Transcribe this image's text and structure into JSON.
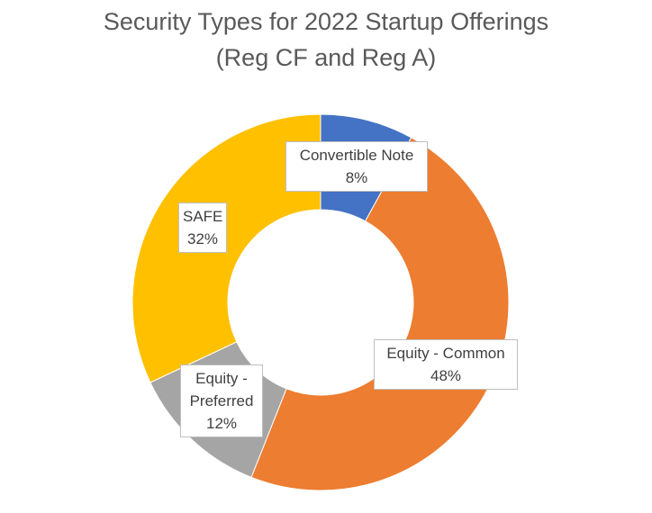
{
  "chart_data": {
    "type": "pie",
    "variant": "donut",
    "title_line1": "Security Types for 2022 Startup Offerings",
    "title_line2": "(Reg CF and Reg A)",
    "slices": [
      {
        "name": "Convertible Note",
        "value": 8,
        "label_lines": [
          "Convertible Note"
        ],
        "percent_label": "8%",
        "color": "#4472c4"
      },
      {
        "name": "Equity - Common",
        "value": 48,
        "label_lines": [
          "Equity - Common"
        ],
        "percent_label": "48%",
        "color": "#ed7d31"
      },
      {
        "name": "Equity - Preferred",
        "value": 12,
        "label_lines": [
          "Equity -",
          "Preferred"
        ],
        "percent_label": "12%",
        "color": "#a5a5a5"
      },
      {
        "name": "SAFE",
        "value": 32,
        "label_lines": [
          "SAFE"
        ],
        "percent_label": "32%",
        "color": "#ffc000"
      }
    ],
    "legend": "none",
    "data_labels": "category and percentage"
  }
}
